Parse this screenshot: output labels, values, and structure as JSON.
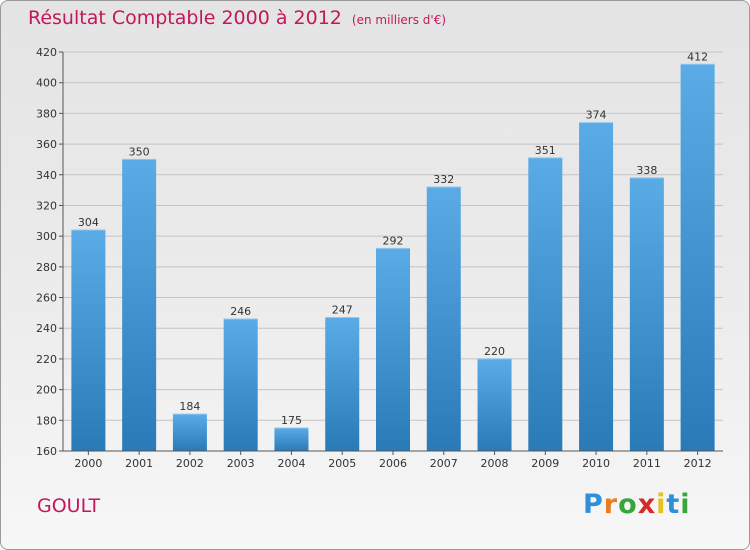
{
  "header": {
    "title": "Résultat Comptable 2000 à 2012",
    "unit": "(en milliers d'€)"
  },
  "footer": {
    "commune": "GOULT",
    "logo": [
      "P",
      "r",
      "o",
      "x",
      "i",
      "t",
      "i"
    ]
  },
  "colors": {
    "title": "#c2185b",
    "bar_top": "#5aabe6",
    "bar_bottom": "#2a7ab8"
  },
  "chart_data": {
    "type": "bar",
    "title": "Résultat Comptable 2000 à 2012",
    "subtitle": "(en milliers d'€)",
    "xlabel": "",
    "ylabel": "",
    "categories": [
      "2000",
      "2001",
      "2002",
      "2003",
      "2004",
      "2005",
      "2006",
      "2007",
      "2008",
      "2009",
      "2010",
      "2011",
      "2012"
    ],
    "values": [
      304,
      350,
      184,
      246,
      175,
      247,
      292,
      332,
      220,
      351,
      374,
      338,
      412
    ],
    "ylim": [
      160,
      420
    ],
    "yticks": [
      160,
      180,
      200,
      220,
      240,
      260,
      280,
      300,
      320,
      340,
      360,
      380,
      400,
      420
    ],
    "grid": true
  }
}
